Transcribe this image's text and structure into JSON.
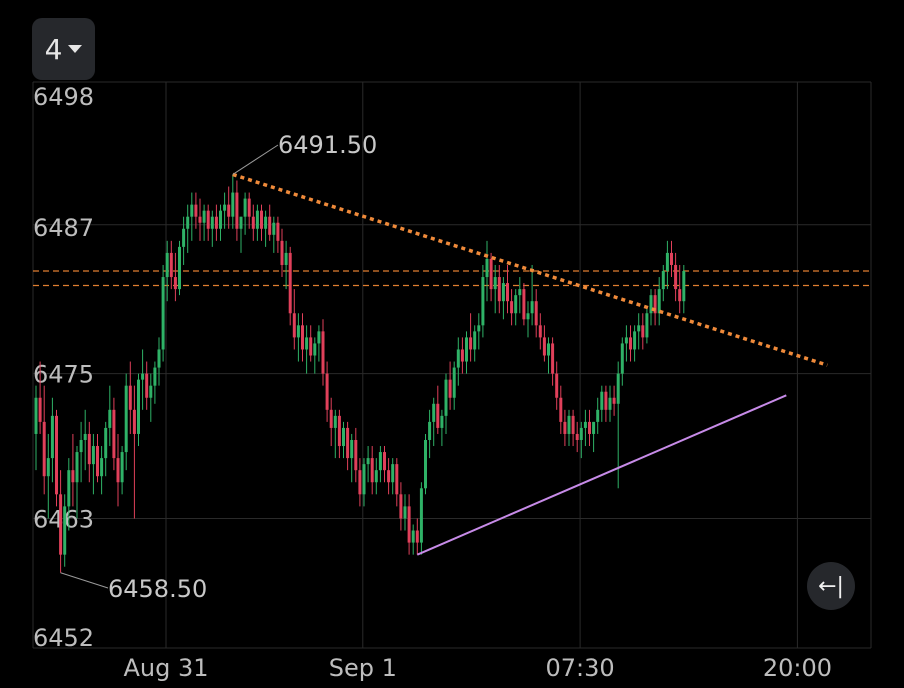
{
  "interval": {
    "label": "4"
  },
  "reset_button": {
    "icon": "←|",
    "icon_name": "scroll-to-latest-icon"
  },
  "colors": {
    "background": "#000000",
    "grid": "#2a2a2a",
    "up": "#2fb267",
    "down": "#e0405a",
    "trendline_dotted": "#ef8a3a",
    "support_line": "#c78be8",
    "hline": "#e07e30"
  },
  "chart_data": {
    "type": "candlestick",
    "ylim": [
      6452,
      6498
    ],
    "yticks": [
      "6498",
      "6487",
      "6475",
      "6463",
      "6452"
    ],
    "ytick_values": [
      6498,
      6487,
      6475,
      6463,
      6452
    ],
    "xticks": [
      "Aug 31",
      "Sep 1",
      "07:30",
      "20:00"
    ],
    "xtick_index": [
      30,
      78,
      131,
      184
    ],
    "grid": true,
    "annotations": [
      {
        "label": "6491.50",
        "index": 48,
        "price": 6491.5
      },
      {
        "label": "6458.50",
        "index": 6,
        "price": 6458.5
      }
    ],
    "horizontal_lines": [
      6483.5,
      6482.3
    ],
    "trendlines": [
      {
        "style": "dotted",
        "from": {
          "index": 48,
          "price": 6491.5
        },
        "to": {
          "index": 193,
          "price": 6475.7
        }
      },
      {
        "style": "solid",
        "from": {
          "index": 93,
          "price": 6460.0
        },
        "to": {
          "index": 183,
          "price": 6473.2
        }
      }
    ],
    "candles": [
      [
        6470.0,
        6474.0,
        6467.0,
        6473.0
      ],
      [
        6473.0,
        6476.0,
        6470.0,
        6471.0
      ],
      [
        6471.0,
        6474.0,
        6465.0,
        6466.5
      ],
      [
        6466.5,
        6470.0,
        6463.0,
        6468.0
      ],
      [
        6468.0,
        6473.0,
        6466.0,
        6471.5
      ],
      [
        6471.5,
        6472.0,
        6464.0,
        6465.0
      ],
      [
        6465.0,
        6467.0,
        6458.5,
        6460.0
      ],
      [
        6460.0,
        6465.0,
        6459.0,
        6464.0
      ],
      [
        6464.0,
        6468.0,
        6462.0,
        6467.0
      ],
      [
        6467.0,
        6470.0,
        6464.0,
        6466.0
      ],
      [
        6466.0,
        6469.0,
        6463.0,
        6468.5
      ],
      [
        6468.5,
        6471.0,
        6466.0,
        6469.5
      ],
      [
        6469.5,
        6472.0,
        6467.0,
        6470.0
      ],
      [
        6470.0,
        6471.0,
        6466.0,
        6467.5
      ],
      [
        6467.5,
        6470.0,
        6465.0,
        6469.0
      ],
      [
        6469.0,
        6470.0,
        6466.0,
        6466.5
      ],
      [
        6466.5,
        6469.0,
        6465.0,
        6468.0
      ],
      [
        6468.0,
        6471.0,
        6466.5,
        6470.5
      ],
      [
        6470.5,
        6474.0,
        6469.0,
        6472.0
      ],
      [
        6472.0,
        6473.0,
        6467.0,
        6468.0
      ],
      [
        6468.0,
        6470.0,
        6464.0,
        6466.0
      ],
      [
        6466.0,
        6469.0,
        6465.0,
        6468.5
      ],
      [
        6468.5,
        6475.0,
        6467.0,
        6474.0
      ],
      [
        6474.0,
        6476.0,
        6470.0,
        6472.0
      ],
      [
        6472.0,
        6474.0,
        6463.0,
        6470.0
      ],
      [
        6470.0,
        6475.0,
        6469.0,
        6474.5
      ],
      [
        6474.5,
        6477.0,
        6472.0,
        6475.0
      ],
      [
        6475.0,
        6476.0,
        6472.0,
        6473.0
      ],
      [
        6473.0,
        6475.0,
        6471.0,
        6474.0
      ],
      [
        6474.0,
        6476.0,
        6472.5,
        6475.5
      ],
      [
        6475.5,
        6478.0,
        6474.0,
        6477.0
      ],
      [
        6477.0,
        6484.0,
        6476.0,
        6483.0
      ],
      [
        6483.0,
        6486.0,
        6481.0,
        6485.0
      ],
      [
        6485.0,
        6486.0,
        6482.0,
        6483.0
      ],
      [
        6483.0,
        6485.0,
        6481.0,
        6482.0
      ],
      [
        6482.0,
        6486.0,
        6481.5,
        6485.5
      ],
      [
        6485.5,
        6488.0,
        6484.0,
        6487.0
      ],
      [
        6487.0,
        6489.0,
        6485.0,
        6488.0
      ],
      [
        6488.0,
        6490.0,
        6486.0,
        6489.0
      ],
      [
        6489.0,
        6490.0,
        6487.0,
        6488.0
      ],
      [
        6488.0,
        6489.5,
        6486.0,
        6487.5
      ],
      [
        6487.5,
        6489.0,
        6486.0,
        6488.5
      ],
      [
        6488.5,
        6489.0,
        6486.0,
        6487.0
      ],
      [
        6487.0,
        6488.5,
        6485.5,
        6488.0
      ],
      [
        6488.0,
        6489.0,
        6486.0,
        6487.0
      ],
      [
        6487.0,
        6489.0,
        6486.0,
        6488.5
      ],
      [
        6488.5,
        6490.0,
        6487.0,
        6489.0
      ],
      [
        6489.0,
        6490.5,
        6487.0,
        6488.0
      ],
      [
        6488.0,
        6491.5,
        6487.0,
        6490.0
      ],
      [
        6490.0,
        6491.0,
        6486.0,
        6487.0
      ],
      [
        6487.0,
        6488.0,
        6485.0,
        6488.0
      ],
      [
        6488.0,
        6490.0,
        6486.5,
        6489.5
      ],
      [
        6489.5,
        6490.0,
        6487.0,
        6488.0
      ],
      [
        6488.0,
        6489.0,
        6486.0,
        6487.0
      ],
      [
        6487.0,
        6489.0,
        6486.0,
        6488.5
      ],
      [
        6488.5,
        6489.0,
        6486.0,
        6487.0
      ],
      [
        6487.0,
        6488.5,
        6485.5,
        6488.0
      ],
      [
        6488.0,
        6489.0,
        6486.0,
        6486.5
      ],
      [
        6486.5,
        6488.0,
        6485.0,
        6487.5
      ],
      [
        6487.5,
        6488.0,
        6485.0,
        6486.0
      ],
      [
        6486.0,
        6487.0,
        6483.0,
        6484.0
      ],
      [
        6484.0,
        6486.0,
        6482.0,
        6485.0
      ],
      [
        6485.0,
        6485.5,
        6479.0,
        6480.0
      ],
      [
        6480.0,
        6482.0,
        6477.0,
        6478.0
      ],
      [
        6478.0,
        6480.0,
        6476.0,
        6479.0
      ],
      [
        6479.0,
        6480.0,
        6476.0,
        6477.0
      ],
      [
        6477.0,
        6479.0,
        6475.0,
        6478.0
      ],
      [
        6478.0,
        6479.0,
        6476.0,
        6476.5
      ],
      [
        6476.5,
        6478.0,
        6475.0,
        6477.5
      ],
      [
        6477.5,
        6479.0,
        6476.0,
        6478.5
      ],
      [
        6478.5,
        6479.5,
        6474.0,
        6475.0
      ],
      [
        6475.0,
        6476.0,
        6471.0,
        6472.0
      ],
      [
        6472.0,
        6473.0,
        6469.0,
        6470.5
      ],
      [
        6470.5,
        6472.0,
        6468.0,
        6471.5
      ],
      [
        6471.5,
        6472.0,
        6468.0,
        6469.0
      ],
      [
        6469.0,
        6471.0,
        6468.0,
        6470.5
      ],
      [
        6470.5,
        6471.0,
        6467.0,
        6468.0
      ],
      [
        6468.0,
        6470.0,
        6466.0,
        6469.5
      ],
      [
        6469.5,
        6470.5,
        6466.0,
        6467.0
      ],
      [
        6467.0,
        6468.0,
        6464.0,
        6465.0
      ],
      [
        6465.0,
        6468.0,
        6464.0,
        6467.5
      ],
      [
        6467.5,
        6469.0,
        6466.0,
        6468.0
      ],
      [
        6468.0,
        6469.0,
        6465.0,
        6466.0
      ],
      [
        6466.0,
        6468.0,
        6465.0,
        6467.0
      ],
      [
        6467.0,
        6469.0,
        6466.0,
        6468.5
      ],
      [
        6468.5,
        6469.0,
        6466.0,
        6467.0
      ],
      [
        6467.0,
        6468.0,
        6465.0,
        6466.0
      ],
      [
        6466.0,
        6468.0,
        6465.0,
        6467.5
      ],
      [
        6467.5,
        6468.0,
        6464.0,
        6465.0
      ],
      [
        6465.0,
        6466.0,
        6462.0,
        6463.0
      ],
      [
        6463.0,
        6465.0,
        6462.0,
        6464.0
      ],
      [
        6464.0,
        6465.0,
        6460.0,
        6461.0
      ],
      [
        6461.0,
        6462.5,
        6460.0,
        6462.0
      ],
      [
        6462.0,
        6463.0,
        6460.0,
        6461.0
      ],
      [
        6461.0,
        6466.0,
        6460.0,
        6465.5
      ],
      [
        6465.5,
        6470.0,
        6465.0,
        6469.5
      ],
      [
        6469.5,
        6472.0,
        6468.0,
        6471.0
      ],
      [
        6471.0,
        6473.0,
        6469.0,
        6472.5
      ],
      [
        6472.5,
        6474.0,
        6470.0,
        6470.5
      ],
      [
        6470.5,
        6472.0,
        6469.0,
        6471.5
      ],
      [
        6471.5,
        6475.0,
        6470.0,
        6474.5
      ],
      [
        6474.5,
        6476.0,
        6472.0,
        6473.0
      ],
      [
        6473.0,
        6476.0,
        6472.0,
        6475.5
      ],
      [
        6475.5,
        6478.0,
        6474.0,
        6477.0
      ],
      [
        6477.0,
        6478.0,
        6475.0,
        6476.0
      ],
      [
        6476.0,
        6478.5,
        6475.0,
        6478.0
      ],
      [
        6478.0,
        6480.0,
        6476.0,
        6477.0
      ],
      [
        6477.0,
        6479.0,
        6476.0,
        6478.5
      ],
      [
        6478.5,
        6480.0,
        6477.0,
        6479.0
      ],
      [
        6479.0,
        6484.0,
        6478.0,
        6483.0
      ],
      [
        6483.0,
        6486.0,
        6481.0,
        6484.5
      ],
      [
        6484.5,
        6485.0,
        6481.0,
        6482.0
      ],
      [
        6482.0,
        6484.0,
        6480.0,
        6483.0
      ],
      [
        6483.0,
        6484.0,
        6480.0,
        6481.0
      ],
      [
        6481.0,
        6483.0,
        6479.5,
        6482.5
      ],
      [
        6482.5,
        6484.0,
        6480.0,
        6481.0
      ],
      [
        6481.0,
        6482.0,
        6479.0,
        6480.0
      ],
      [
        6480.0,
        6482.0,
        6479.0,
        6481.5
      ],
      [
        6481.5,
        6483.0,
        6480.0,
        6482.0
      ],
      [
        6482.0,
        6482.5,
        6479.0,
        6479.5
      ],
      [
        6479.5,
        6481.0,
        6478.0,
        6480.0
      ],
      [
        6480.0,
        6484.0,
        6479.0,
        6481.0
      ],
      [
        6481.0,
        6482.0,
        6478.0,
        6479.0
      ],
      [
        6479.0,
        6480.0,
        6477.0,
        6478.0
      ],
      [
        6478.0,
        6479.0,
        6476.0,
        6476.5
      ],
      [
        6476.5,
        6478.0,
        6475.0,
        6477.5
      ],
      [
        6477.5,
        6478.0,
        6474.0,
        6475.0
      ],
      [
        6475.0,
        6476.0,
        6472.0,
        6473.0
      ],
      [
        6473.0,
        6474.0,
        6470.0,
        6471.0
      ],
      [
        6471.0,
        6472.0,
        6469.0,
        6470.0
      ],
      [
        6470.0,
        6472.0,
        6469.0,
        6471.5
      ],
      [
        6471.5,
        6472.0,
        6469.0,
        6470.0
      ],
      [
        6470.0,
        6471.0,
        6468.5,
        6469.5
      ],
      [
        6469.5,
        6471.0,
        6468.0,
        6470.5
      ],
      [
        6470.5,
        6472.0,
        6469.0,
        6471.0
      ],
      [
        6471.0,
        6472.0,
        6469.0,
        6470.0
      ],
      [
        6470.0,
        6471.0,
        6468.5,
        6471.0
      ],
      [
        6471.0,
        6473.0,
        6470.0,
        6472.0
      ],
      [
        6472.0,
        6474.0,
        6471.0,
        6473.5
      ],
      [
        6473.5,
        6474.0,
        6471.0,
        6472.0
      ],
      [
        6472.0,
        6474.0,
        6471.0,
        6473.0
      ],
      [
        6473.0,
        6474.0,
        6471.5,
        6472.5
      ],
      [
        6472.5,
        6476.0,
        6465.5,
        6475.0
      ],
      [
        6475.0,
        6478.0,
        6474.0,
        6477.5
      ],
      [
        6477.5,
        6479.0,
        6476.0,
        6478.0
      ],
      [
        6478.0,
        6479.0,
        6476.0,
        6477.0
      ],
      [
        6477.0,
        6479.0,
        6476.0,
        6478.5
      ],
      [
        6478.5,
        6480.0,
        6477.0,
        6479.0
      ],
      [
        6479.0,
        6480.0,
        6477.0,
        6478.0
      ],
      [
        6478.0,
        6480.5,
        6477.5,
        6480.0
      ],
      [
        6480.0,
        6482.0,
        6479.0,
        6481.5
      ],
      [
        6481.5,
        6482.0,
        6479.0,
        6480.0
      ],
      [
        6480.0,
        6483.0,
        6479.0,
        6482.0
      ],
      [
        6482.0,
        6484.0,
        6481.0,
        6483.5
      ],
      [
        6483.5,
        6486.0,
        6482.0,
        6485.0
      ],
      [
        6485.0,
        6486.0,
        6483.0,
        6484.0
      ],
      [
        6484.0,
        6485.0,
        6481.0,
        6482.0
      ],
      [
        6482.0,
        6484.0,
        6480.0,
        6481.0
      ],
      [
        6481.0,
        6484.0,
        6480.0,
        6483.5
      ]
    ]
  }
}
